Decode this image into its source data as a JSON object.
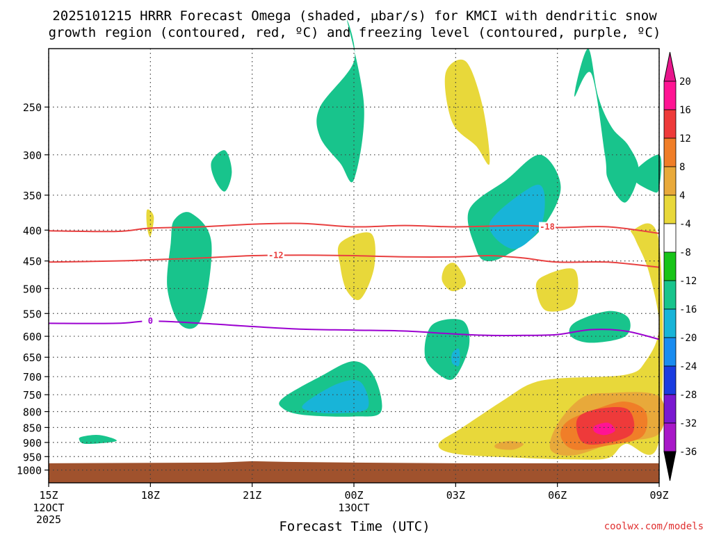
{
  "chart_data": {
    "type": "heatmap",
    "title_line1": "2025101215 HRRR Forecast Omega (shaded, μbar/s) for KMCI with dendritic snow",
    "title_line2": "growth region (contoured, red, ºC) and freezing level (contoured, purple, ºC)",
    "xlabel": "Forecast Time (UTC)",
    "credit": "coolwx.com/models",
    "x_ticks": [
      {
        "hour": 0,
        "label": "15Z",
        "sub1": "12OCT",
        "sub2": "2025"
      },
      {
        "hour": 3,
        "label": "18Z",
        "sub1": "",
        "sub2": ""
      },
      {
        "hour": 6,
        "label": "21Z",
        "sub1": "",
        "sub2": ""
      },
      {
        "hour": 9,
        "label": "00Z",
        "sub1": "13OCT",
        "sub2": ""
      },
      {
        "hour": 12,
        "label": "03Z",
        "sub1": "",
        "sub2": ""
      },
      {
        "hour": 15,
        "label": "06Z",
        "sub1": "",
        "sub2": ""
      },
      {
        "hour": 18,
        "label": "09Z",
        "sub1": "",
        "sub2": ""
      }
    ],
    "xlim": [
      0,
      18
    ],
    "ylim": [
      1050,
      200
    ],
    "y_ticks": [
      250,
      300,
      350,
      400,
      450,
      500,
      550,
      600,
      650,
      700,
      750,
      800,
      850,
      900,
      950,
      1000
    ],
    "colorbar": {
      "labels": [
        "20",
        "16",
        "12",
        "8",
        "4",
        "-4",
        "-8",
        "-12",
        "-16",
        "-20",
        "-24",
        "-28",
        "-32",
        "-36"
      ],
      "colors": [
        "#ff1493",
        "#ee3a3a",
        "#f07e28",
        "#e8a93a",
        "#e8d83a",
        "#ffffff",
        "#18c418",
        "#18c48c",
        "#18b4d8",
        "#1a8cf0",
        "#1a3ce0",
        "#7a18d0",
        "#a818c8",
        "#a0a0a0",
        "#000000"
      ],
      "top_triangle": "#e8168c",
      "bottom_triangle": "#000000"
    },
    "contours": [
      {
        "name": "dgz-upper",
        "color": "#e84040",
        "label": "-18",
        "label_hour": 14.7,
        "points": [
          [
            0,
            401
          ],
          [
            2,
            402
          ],
          [
            3,
            397
          ],
          [
            4.5,
            395
          ],
          [
            6,
            391
          ],
          [
            7.5,
            390
          ],
          [
            9,
            395
          ],
          [
            10.5,
            393
          ],
          [
            12,
            395
          ],
          [
            14,
            393
          ],
          [
            15,
            396
          ],
          [
            16.5,
            395
          ],
          [
            18,
            405
          ]
        ]
      },
      {
        "name": "dgz-lower",
        "color": "#e84040",
        "label": "-12",
        "label_hour": 6.7,
        "points": [
          [
            0,
            452
          ],
          [
            2,
            450
          ],
          [
            3,
            448
          ],
          [
            4.5,
            445
          ],
          [
            6,
            441
          ],
          [
            7.5,
            440
          ],
          [
            9,
            441
          ],
          [
            10.5,
            443
          ],
          [
            12,
            443
          ],
          [
            13,
            441
          ],
          [
            14,
            445
          ],
          [
            15,
            452
          ],
          [
            16.5,
            452
          ],
          [
            18,
            461
          ]
        ]
      },
      {
        "name": "freezing-level",
        "color": "#9b00d0",
        "label": "0",
        "label_hour": 3,
        "points": [
          [
            0,
            571
          ],
          [
            2,
            571
          ],
          [
            3,
            566
          ],
          [
            4.5,
            571
          ],
          [
            6,
            578
          ],
          [
            7.5,
            584
          ],
          [
            9,
            586
          ],
          [
            10.5,
            588
          ],
          [
            12,
            595
          ],
          [
            13,
            598
          ],
          [
            14,
            598
          ],
          [
            15,
            596
          ],
          [
            16,
            585
          ],
          [
            17,
            588
          ],
          [
            18,
            607
          ]
        ]
      }
    ],
    "omega_regions": [
      {
        "name": "green-0",
        "level": -8,
        "points": [
          [
            1,
            880
          ],
          [
            1.5,
            875
          ],
          [
            2,
            895
          ],
          [
            1.1,
            905
          ],
          [
            0.9,
            890
          ]
        ]
      },
      {
        "name": "green-1",
        "level": -8,
        "points": [
          [
            4.8,
            308
          ],
          [
            5.2,
            295
          ],
          [
            5.4,
            320
          ],
          [
            5.2,
            345
          ],
          [
            4.9,
            330
          ]
        ]
      },
      {
        "name": "green-2",
        "level": -8,
        "points": [
          [
            3.7,
            385
          ],
          [
            4.2,
            375
          ],
          [
            4.8,
            420
          ],
          [
            4.5,
            560
          ],
          [
            3.9,
            575
          ],
          [
            3.5,
            500
          ],
          [
            3.6,
            420
          ]
        ]
      },
      {
        "name": "green-3",
        "level": -8,
        "points": [
          [
            8,
            250
          ],
          [
            9,
            210
          ],
          [
            8.8,
            180
          ],
          [
            9.3,
            250
          ],
          [
            9.0,
            330
          ],
          [
            8.6,
            310
          ],
          [
            8.0,
            280
          ]
        ]
      },
      {
        "name": "green-4",
        "level": -8,
        "points": [
          [
            6.9,
            760
          ],
          [
            8,
            700
          ],
          [
            9,
            660
          ],
          [
            9.6,
            700
          ],
          [
            9.8,
            800
          ],
          [
            9,
            815
          ],
          [
            7.5,
            810
          ],
          [
            6.9,
            790
          ]
        ]
      },
      {
        "name": "green-5",
        "level": -8,
        "points": [
          [
            11.3,
            575
          ],
          [
            12.2,
            565
          ],
          [
            12.4,
            620
          ],
          [
            12,
            700
          ],
          [
            11.6,
            700
          ],
          [
            11.1,
            650
          ]
        ]
      },
      {
        "name": "green-6",
        "level": -8,
        "points": [
          [
            12.4,
            370
          ],
          [
            13.5,
            330
          ],
          [
            14.5,
            300
          ],
          [
            15.1,
            340
          ],
          [
            14.5,
            400
          ],
          [
            13.5,
            440
          ],
          [
            12.9,
            450
          ],
          [
            12.6,
            430
          ]
        ]
      },
      {
        "name": "green-7",
        "level": -8,
        "points": [
          [
            15.5,
            240
          ],
          [
            16,
            220
          ],
          [
            16.4,
            300
          ],
          [
            16.5,
            330
          ],
          [
            17,
            360
          ],
          [
            17.4,
            320
          ],
          [
            17.1,
            290
          ],
          [
            16.6,
            270
          ],
          [
            16.2,
            240
          ],
          [
            15.9,
            200
          ]
        ]
      },
      {
        "name": "green-8",
        "level": -8,
        "points": [
          [
            17.2,
            325
          ],
          [
            18,
            300
          ],
          [
            18,
            340
          ],
          [
            17.8,
            345
          ]
        ]
      },
      {
        "name": "green-9",
        "level": -8,
        "points": [
          [
            15.5,
            570
          ],
          [
            16.5,
            545
          ],
          [
            17.1,
            560
          ],
          [
            17,
            600
          ],
          [
            16,
            615
          ],
          [
            15.4,
            600
          ]
        ]
      },
      {
        "name": "teal-1",
        "level": -12,
        "points": [
          [
            7.5,
            780
          ],
          [
            8.5,
            720
          ],
          [
            9.2,
            715
          ],
          [
            9.4,
            790
          ],
          [
            8.5,
            805
          ],
          [
            7.8,
            800
          ]
        ]
      },
      {
        "name": "teal-2",
        "level": -12,
        "points": [
          [
            13,
            390
          ],
          [
            14.2,
            340
          ],
          [
            14.6,
            345
          ],
          [
            14.5,
            395
          ],
          [
            13.7,
            430
          ]
        ]
      },
      {
        "name": "teal-3",
        "level": -12,
        "points": [
          [
            11.9,
            640
          ],
          [
            12.1,
            630
          ],
          [
            12.1,
            670
          ],
          [
            11.9,
            665
          ]
        ]
      },
      {
        "name": "yellow-1",
        "level": 4,
        "points": [
          [
            2.9,
            370
          ],
          [
            3.1,
            380
          ],
          [
            3.0,
            410
          ],
          [
            2.9,
            395
          ]
        ]
      },
      {
        "name": "yellow-2",
        "level": 4,
        "points": [
          [
            11.7,
            220
          ],
          [
            12.3,
            210
          ],
          [
            12.8,
            250
          ],
          [
            13,
            310
          ],
          [
            12.6,
            290
          ],
          [
            11.9,
            265
          ]
        ]
      },
      {
        "name": "yellow-3",
        "level": 4,
        "points": [
          [
            8.6,
            420
          ],
          [
            9.5,
            405
          ],
          [
            9.6,
            460
          ],
          [
            9.2,
            520
          ],
          [
            8.8,
            505
          ],
          [
            8.6,
            460
          ]
        ]
      },
      {
        "name": "yellow-4",
        "level": 4,
        "points": [
          [
            11.7,
            460
          ],
          [
            12.0,
            455
          ],
          [
            12.3,
            490
          ],
          [
            11.9,
            505
          ],
          [
            11.6,
            485
          ]
        ]
      },
      {
        "name": "yellow-5",
        "level": 4,
        "points": [
          [
            14.5,
            480
          ],
          [
            15.5,
            465
          ],
          [
            15.5,
            530
          ],
          [
            14.7,
            545
          ],
          [
            14.4,
            510
          ]
        ]
      },
      {
        "name": "yellow-6",
        "level": 4,
        "points": [
          [
            11.5,
            905
          ],
          [
            12.2,
            850
          ],
          [
            13.5,
            760
          ],
          [
            14.2,
            720
          ],
          [
            15,
            705
          ],
          [
            17,
            695
          ],
          [
            17.6,
            660
          ],
          [
            18,
            580
          ],
          [
            17.7,
            470
          ],
          [
            17.3,
            415
          ],
          [
            17.2,
            400
          ],
          [
            18,
            420
          ],
          [
            18,
            890
          ],
          [
            17,
            905
          ],
          [
            16.5,
            955
          ],
          [
            15.5,
            960
          ],
          [
            14,
            955
          ],
          [
            12,
            940
          ]
        ]
      },
      {
        "name": "orange-1",
        "level": 8,
        "points": [
          [
            15,
            840
          ],
          [
            15.7,
            760
          ],
          [
            16.5,
            745
          ],
          [
            18,
            755
          ],
          [
            18,
            870
          ],
          [
            16.7,
            900
          ],
          [
            15.5,
            945
          ],
          [
            14.8,
            925
          ]
        ]
      },
      {
        "name": "orange-2",
        "level": 8,
        "points": [
          [
            13.2,
            905
          ],
          [
            13.6,
            895
          ],
          [
            14.0,
            905
          ],
          [
            13.7,
            925
          ],
          [
            13.2,
            920
          ]
        ]
      },
      {
        "name": "orange-3",
        "level": 12,
        "points": [
          [
            15.3,
            830
          ],
          [
            16.2,
            790
          ],
          [
            17,
            770
          ],
          [
            17.6,
            800
          ],
          [
            17.5,
            880
          ],
          [
            16.5,
            910
          ],
          [
            15.5,
            925
          ],
          [
            15.1,
            880
          ]
        ]
      },
      {
        "name": "red-1",
        "level": 16,
        "points": [
          [
            15.6,
            820
          ],
          [
            16.3,
            790
          ],
          [
            17.1,
            795
          ],
          [
            17.2,
            870
          ],
          [
            16.3,
            905
          ],
          [
            15.7,
            895
          ]
        ]
      },
      {
        "name": "pink-1",
        "level": 20,
        "points": [
          [
            16.1,
            845
          ],
          [
            16.5,
            835
          ],
          [
            16.7,
            860
          ],
          [
            16.4,
            875
          ],
          [
            16.1,
            865
          ]
        ]
      }
    ],
    "terrain": {
      "color": "#a0522d",
      "top_pressure": 972
    }
  }
}
